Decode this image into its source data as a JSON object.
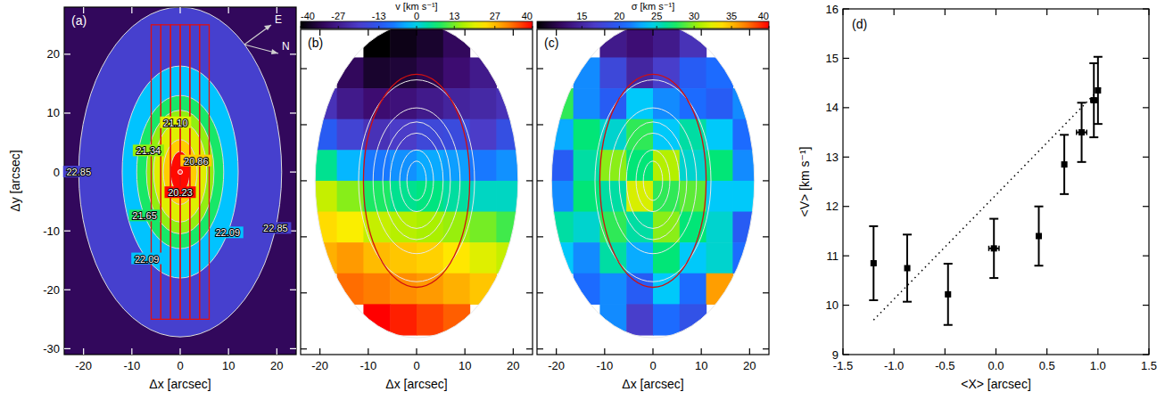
{
  "chart_data": [
    {
      "type": "image",
      "label": "(a)",
      "xlabel": "Δx [arcsec]",
      "ylabel": "Δy [arcsec]",
      "xlim": [
        -24,
        24
      ],
      "xticks": [
        -20,
        -10,
        0,
        10,
        20
      ],
      "ylim": [
        -31,
        28
      ],
      "yticks": [
        -30,
        -20,
        -10,
        0,
        10,
        20
      ],
      "clim": [
        20.2,
        23.8
      ],
      "contours": [
        {
          "value": 22.85,
          "label": "22.85",
          "rx": 21,
          "ry": 28
        },
        {
          "value": 22.09,
          "label": "22.09",
          "rx": 12,
          "ry": 18
        },
        {
          "value": 21.65,
          "label": "21.65",
          "rx": 9,
          "ry": 13
        },
        {
          "value": 21.34,
          "label": "21.34",
          "rx": 7,
          "ry": 10.5
        },
        {
          "value": 21.1,
          "label": "21.10",
          "rx": 5.5,
          "ry": 8.5
        },
        {
          "value": 20.86,
          "label": "20.86",
          "rx": 3.5,
          "ry": 5.5
        },
        {
          "value": 20.23,
          "label": "20.23",
          "rx": 2,
          "ry": 3.5
        }
      ],
      "slits": [
        -6,
        -4,
        -2,
        0,
        2,
        4,
        6
      ],
      "slit_y": [
        -25,
        25
      ],
      "compass": [
        "E",
        "N"
      ]
    },
    {
      "type": "heatmap",
      "label": "(b)",
      "xlabel": "Δx [arcsec]",
      "xlim": [
        -24,
        24
      ],
      "xticks": [
        -20,
        -10,
        0,
        10,
        20
      ],
      "ylim": [
        -31,
        27
      ],
      "yticks": [
        -30,
        -20,
        -10,
        0,
        10,
        20
      ],
      "tick_labels": "x",
      "x_centers": [
        -19.25,
        -13.75,
        -8.25,
        -2.75,
        2.75,
        8.25,
        13.75,
        19.25
      ],
      "y_centers": [
        24.75,
        19.25,
        13.75,
        8.25,
        2.75,
        -2.75,
        -8.25,
        -13.75,
        -19.25,
        -24.75
      ],
      "cells": [
        [
          null,
          null,
          -40,
          -38,
          -36,
          -32,
          null,
          null
        ],
        [
          null,
          -32,
          -36,
          -35,
          -33,
          -30,
          -27,
          null
        ],
        [
          -22,
          -27,
          -30,
          -29,
          -27,
          -25,
          -24,
          -22
        ],
        [
          -12,
          -18,
          -22,
          -20,
          -17,
          -16,
          -20,
          -15
        ],
        [
          5,
          -3,
          -8,
          -6,
          -4,
          -5,
          -8,
          -6
        ],
        [
          18,
          14,
          8,
          5,
          6,
          4,
          2,
          2
        ],
        [
          24,
          22,
          18,
          17,
          16,
          15,
          13,
          10
        ],
        [
          28,
          30,
          27,
          26,
          25,
          23,
          20,
          18
        ],
        [
          null,
          33,
          32,
          31,
          30,
          28,
          26,
          null
        ],
        [
          null,
          null,
          40,
          38,
          36,
          34,
          null,
          null
        ]
      ],
      "colorbar": {
        "title": "v  [km s⁻¹]",
        "range": [
          -40,
          40
        ],
        "ticks": [
          -40,
          -27,
          -13,
          0,
          13,
          27,
          40
        ]
      },
      "ellipse": {
        "rx": 11,
        "ry": 19
      }
    },
    {
      "type": "heatmap",
      "label": "(c)",
      "xlabel": "Δx [arcsec]",
      "xlim": [
        -24,
        24
      ],
      "xticks": [
        -20,
        -10,
        0,
        10,
        20
      ],
      "ylim": [
        -31,
        27
      ],
      "yticks": [
        -30,
        -20,
        -10,
        0,
        10,
        20
      ],
      "tick_labels": "x",
      "x_centers": [
        -19.25,
        -13.75,
        -8.25,
        -2.75,
        2.75,
        8.25,
        13.75,
        19.25
      ],
      "y_centers": [
        24.75,
        19.25,
        13.75,
        8.25,
        2.75,
        -2.75,
        -8.25,
        -13.75,
        -19.25,
        -24.75
      ],
      "cells": [
        [
          null,
          null,
          14,
          13,
          14,
          16,
          null,
          null
        ],
        [
          null,
          22,
          18,
          15,
          17,
          20,
          21,
          null
        ],
        [
          28,
          22,
          20,
          24,
          22,
          21,
          20,
          22
        ],
        [
          23,
          27,
          25,
          28,
          24,
          26,
          24,
          21
        ],
        [
          20,
          26,
          30,
          27,
          31,
          25,
          27,
          22
        ],
        [
          22,
          27,
          26,
          32,
          28,
          29,
          24,
          24
        ],
        [
          26,
          25,
          28,
          26,
          30,
          27,
          25,
          20
        ],
        [
          24,
          22,
          26,
          23,
          27,
          24,
          25,
          21
        ],
        [
          null,
          21,
          22,
          20,
          24,
          21,
          36,
          null
        ],
        [
          null,
          null,
          22,
          17,
          21,
          19,
          null,
          null
        ]
      ],
      "colorbar": {
        "title": "σ  [km s⁻¹]",
        "range": [
          9,
          40
        ],
        "ticks": [
          15,
          20,
          25,
          30,
          35,
          40
        ]
      },
      "ellipse": {
        "rx": 11,
        "ry": 19
      }
    },
    {
      "type": "scatter",
      "label": "(d)",
      "xlabel": "<X> [arcsec]",
      "ylabel": "<V> [km s⁻¹]",
      "xlim": [
        -1.5,
        1.5
      ],
      "xticks": [
        -1.5,
        {
          "value": -1,
          "label": "-1.0"
        },
        -0.5,
        {
          "value": 0,
          "label": "0.0"
        },
        0.5,
        {
          "value": 1,
          "label": "1.0"
        },
        1.5
      ],
      "ylim": [
        9,
        16
      ],
      "yticks": [
        9,
        10,
        11,
        12,
        13,
        14,
        15,
        16
      ],
      "series": [
        {
          "type": "scatter",
          "marker": "square",
          "color": "#000000",
          "x": [
            -1.2,
            -0.87,
            -0.47,
            -0.02,
            0.42,
            0.67,
            0.84,
            0.96,
            1.0
          ],
          "values": [
            10.85,
            10.75,
            10.22,
            11.15,
            11.4,
            12.85,
            13.5,
            14.15,
            14.35
          ],
          "x_errors": [
            0.02,
            0.02,
            0.02,
            0.05,
            0.02,
            0.02,
            0.05,
            0.03,
            0.02
          ],
          "errors": [
            0.75,
            0.68,
            0.62,
            0.6,
            0.6,
            0.6,
            0.6,
            0.75,
            0.68
          ]
        },
        {
          "type": "line",
          "line_style": "dotted",
          "color": "#000000",
          "x": [
            -1.2,
            1.05
          ],
          "values": [
            9.7,
            14.45
          ]
        }
      ]
    }
  ]
}
